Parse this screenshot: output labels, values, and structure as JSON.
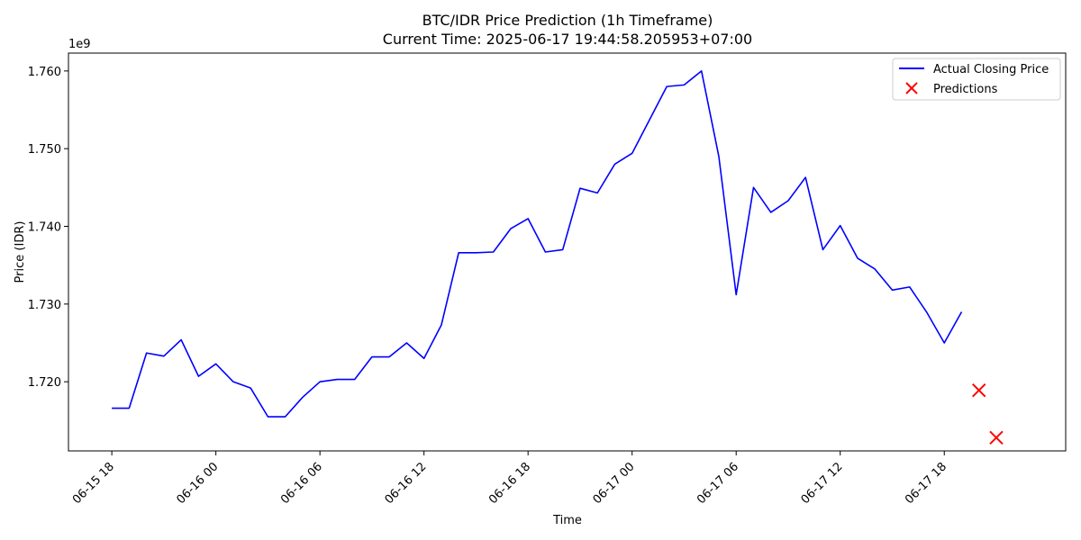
{
  "chart_data": {
    "type": "line",
    "title": "BTC/IDR Price Prediction (1h Timeframe)",
    "subtitle": "Current Time: 2025-06-17 19:44:58.205953+07:00",
    "xlabel": "Time",
    "ylabel": "Price (IDR)",
    "y_offset_label": "1e9",
    "y_unit_scale": 1000000000,
    "ylim": [
      1.7111,
      1.7623
    ],
    "xlim": [
      "2025-06-15 15:30",
      "2025-06-18 01:00"
    ],
    "x_tick_labels": [
      "06-15 18",
      "06-16 00",
      "06-16 06",
      "06-16 12",
      "06-16 18",
      "06-17 00",
      "06-17 06",
      "06-17 12",
      "06-17 18"
    ],
    "x_tick_values": [
      "2025-06-15 18:00",
      "2025-06-16 00:00",
      "2025-06-16 06:00",
      "2025-06-16 12:00",
      "2025-06-16 18:00",
      "2025-06-17 00:00",
      "2025-06-17 06:00",
      "2025-06-17 12:00",
      "2025-06-17 18:00"
    ],
    "y_ticks": [
      1.72,
      1.73,
      1.74,
      1.75,
      1.76
    ],
    "y_tick_labels": [
      "1.720",
      "1.730",
      "1.740",
      "1.750",
      "1.760"
    ],
    "grid": false,
    "legend_position": "top-right",
    "series": [
      {
        "name": "Actual Closing Price",
        "type": "line",
        "color": "#0000ff",
        "x": [
          "2025-06-15 18:00",
          "2025-06-15 19:00",
          "2025-06-15 20:00",
          "2025-06-15 21:00",
          "2025-06-15 22:00",
          "2025-06-15 23:00",
          "2025-06-16 00:00",
          "2025-06-16 01:00",
          "2025-06-16 02:00",
          "2025-06-16 03:00",
          "2025-06-16 04:00",
          "2025-06-16 05:00",
          "2025-06-16 06:00",
          "2025-06-16 07:00",
          "2025-06-16 08:00",
          "2025-06-16 09:00",
          "2025-06-16 10:00",
          "2025-06-16 11:00",
          "2025-06-16 12:00",
          "2025-06-16 13:00",
          "2025-06-16 14:00",
          "2025-06-16 15:00",
          "2025-06-16 16:00",
          "2025-06-16 17:00",
          "2025-06-16 18:00",
          "2025-06-16 19:00",
          "2025-06-16 20:00",
          "2025-06-16 21:00",
          "2025-06-16 22:00",
          "2025-06-16 23:00",
          "2025-06-17 00:00",
          "2025-06-17 01:00",
          "2025-06-17 02:00",
          "2025-06-17 03:00",
          "2025-06-17 04:00",
          "2025-06-17 05:00",
          "2025-06-17 06:00",
          "2025-06-17 07:00",
          "2025-06-17 08:00",
          "2025-06-17 09:00",
          "2025-06-17 10:00",
          "2025-06-17 11:00",
          "2025-06-17 12:00",
          "2025-06-17 13:00",
          "2025-06-17 14:00",
          "2025-06-17 15:00",
          "2025-06-17 16:00",
          "2025-06-17 17:00",
          "2025-06-17 18:00",
          "2025-06-17 19:00"
        ],
        "values": [
          1.7166,
          1.7166,
          1.7237,
          1.7233,
          1.7254,
          1.7207,
          1.7223,
          1.72,
          1.7192,
          1.7155,
          1.7155,
          1.718,
          1.72,
          1.7203,
          1.7203,
          1.7232,
          1.7232,
          1.725,
          1.723,
          1.7273,
          1.7366,
          1.7366,
          1.7367,
          1.7397,
          1.741,
          1.7367,
          1.737,
          1.7449,
          1.7443,
          1.748,
          1.7494,
          1.7537,
          1.758,
          1.7582,
          1.76,
          1.749,
          1.7312,
          1.745,
          1.7418,
          1.7433,
          1.7463,
          1.737,
          1.7401,
          1.7359,
          1.7345,
          1.7318,
          1.7322,
          1.7289,
          1.725,
          1.729
        ]
      },
      {
        "name": "Predictions",
        "type": "scatter",
        "marker": "x",
        "color": "#ff0000",
        "x": [
          "2025-06-17 20:00",
          "2025-06-17 21:00"
        ],
        "values": [
          1.7189,
          1.7128
        ]
      }
    ]
  }
}
